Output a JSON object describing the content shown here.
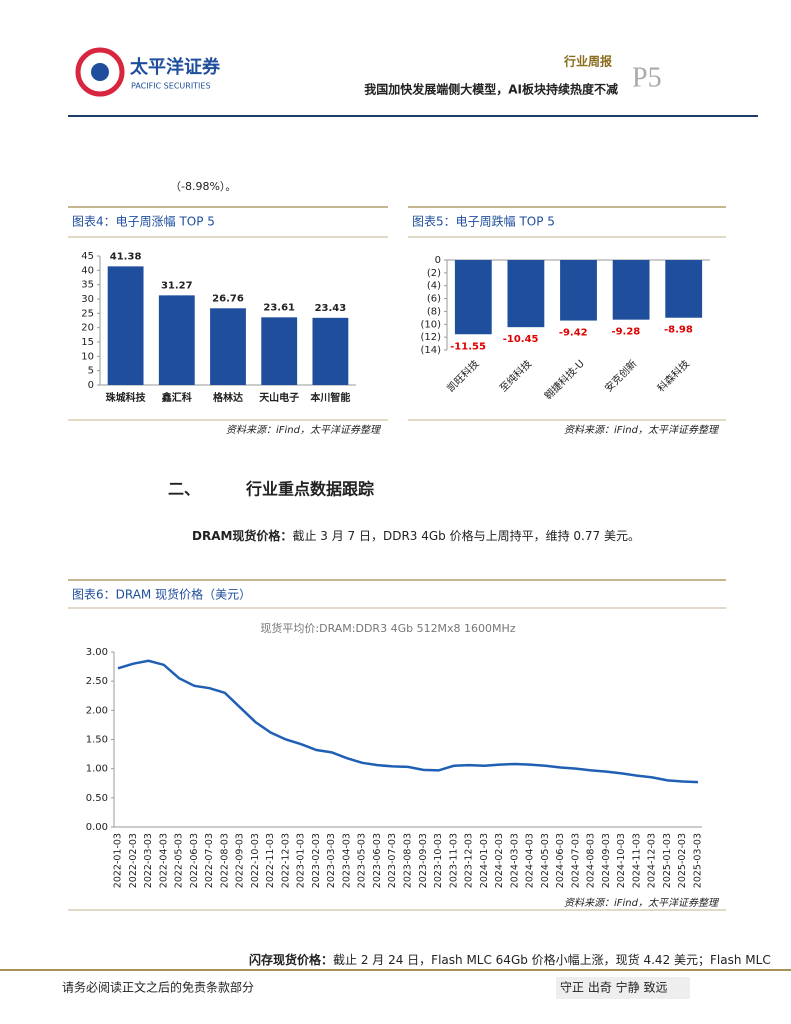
{
  "header": {
    "logo_cn": "太平洋证券",
    "logo_en": "PACIFIC SECURITIES",
    "report_type": "行业周报",
    "headline": "我国加快发展端侧大模型，AI板块持续热度不减",
    "page": "P5"
  },
  "body": {
    "intro": "（-8.98%）。",
    "section_number": "二、",
    "section_title": "行业重点数据跟踪",
    "para1_lead": "DRAM现货价格：",
    "para1_text": "截止 3 月 7 日，DDR3 4Gb 价格与上周持平，维持 0.77 美元。",
    "para2_lead": "闪存现货价格：",
    "para2_text": "截止 2 月 24 日，Flash MLC 64Gb 价格小幅上涨，现货 4.42 美元；Flash MLC"
  },
  "figures": [
    {
      "title": "图表4：电子周涨幅 TOP 5",
      "source": "资料来源：iFind，太平洋证券整理"
    },
    {
      "title": "图表5：电子周跌幅 TOP 5",
      "source": "资料来源：iFind，太平洋证券整理"
    },
    {
      "title": "图表6：DRAM 现货价格（美元）",
      "source": "资料来源：iFind，太平洋证券整理"
    }
  ],
  "chart_data": [
    {
      "type": "bar",
      "categories": [
        "珠城科技",
        "鑫汇科",
        "格林达",
        "天山电子",
        "本川智能"
      ],
      "values": [
        41.38,
        31.27,
        26.76,
        23.61,
        23.43
      ],
      "color": "#1f4e9c",
      "label_color": "#222222",
      "ylim": [
        0,
        45
      ],
      "yticks": [
        0,
        5,
        10,
        15,
        20,
        25,
        30,
        35,
        40,
        45
      ]
    },
    {
      "type": "bar",
      "categories": [
        "凯旺科技",
        "至纯科技",
        "翱捷科技-U",
        "安克创新",
        "科森科技"
      ],
      "values": [
        -11.55,
        -10.45,
        -9.42,
        -9.28,
        -8.98
      ],
      "color": "#1f4e9c",
      "label_color": "#e00000",
      "ylim": [
        -14,
        0
      ],
      "yticks": [
        0,
        {
          "value": -2,
          "label": "(2)"
        },
        {
          "value": -4,
          "label": "(4)"
        },
        {
          "value": -6,
          "label": "(6)"
        },
        {
          "value": -8,
          "label": "(8)"
        },
        {
          "value": -10,
          "label": "(10)"
        },
        {
          "value": -12,
          "label": "(12)"
        },
        {
          "value": -14,
          "label": "(14)"
        }
      ]
    },
    {
      "type": "line",
      "title": "现货平均价:DRAM:DDR3 4Gb 512Mx8 1600MHz",
      "categories": [
        "2022-01-03",
        "2022-02-03",
        "2022-03-03",
        "2022-04-03",
        "2022-05-03",
        "2022-06-03",
        "2022-07-03",
        "2022-08-03",
        "2022-09-03",
        "2022-10-03",
        "2022-11-03",
        "2022-12-03",
        "2023-01-03",
        "2023-02-03",
        "2023-03-03",
        "2023-04-03",
        "2023-05-03",
        "2023-06-03",
        "2023-07-03",
        "2023-08-03",
        "2023-09-03",
        "2023-10-03",
        "2023-11-03",
        "2023-12-03",
        "2024-01-03",
        "2024-02-03",
        "2024-03-03",
        "2024-04-03",
        "2024-05-03",
        "2024-06-03",
        "2024-07-03",
        "2024-08-03",
        "2024-09-03",
        "2024-10-03",
        "2024-11-03",
        "2024-12-03",
        "2025-01-03",
        "2025-02-03",
        "2025-03-03"
      ],
      "values": [
        2.72,
        2.8,
        2.85,
        2.78,
        2.55,
        2.42,
        2.38,
        2.3,
        2.05,
        1.8,
        1.62,
        1.5,
        1.42,
        1.32,
        1.28,
        1.18,
        1.1,
        1.06,
        1.04,
        1.03,
        0.98,
        0.97,
        1.05,
        1.06,
        1.05,
        1.07,
        1.08,
        1.07,
        1.05,
        1.02,
        1.0,
        0.97,
        0.95,
        0.92,
        0.88,
        0.85,
        0.8,
        0.78,
        0.77
      ],
      "color": "#1f5fb4",
      "ylim": [
        0,
        3
      ],
      "yticks": [
        {
          "value": 0,
          "label": "0.00"
        },
        {
          "value": 0.5,
          "label": "0.50"
        },
        {
          "value": 1,
          "label": "1.00"
        },
        {
          "value": 1.5,
          "label": "1.50"
        },
        {
          "value": 2,
          "label": "2.00"
        },
        {
          "value": 2.5,
          "label": "2.50"
        },
        {
          "value": 3,
          "label": "3.00"
        }
      ]
    }
  ],
  "footer": {
    "disclaimer": "请务必阅读正文之后的免责条款部分",
    "motto": "守正 出奇 宁静 致远"
  }
}
